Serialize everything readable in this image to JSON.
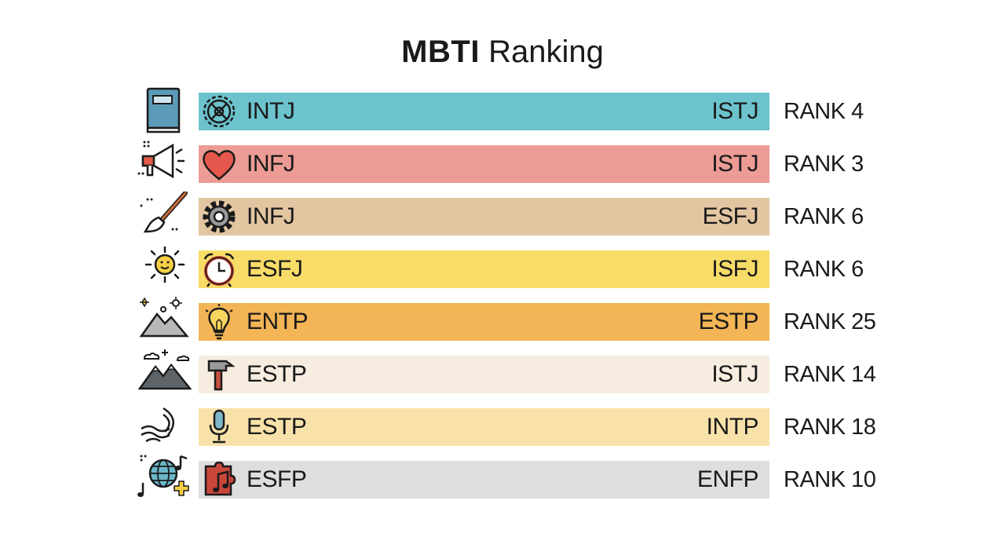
{
  "title": {
    "bold": "MBTI",
    "regular": "Ranking"
  },
  "rows": [
    {
      "left_icon": "book-icon",
      "bar_icon": "gear-wheel-icon",
      "type_left": "INTJ",
      "type_right": "ISTJ",
      "rank": "RANK 4",
      "color": "#6cc3cd"
    },
    {
      "left_icon": "megaphone-icon",
      "bar_icon": "heart-icon",
      "type_left": "INFJ",
      "type_right": "ISTJ",
      "rank": "RANK 3",
      "color": "#ec9c94"
    },
    {
      "left_icon": "paintbrush-icon",
      "bar_icon": "gear-icon",
      "type_left": "INFJ",
      "type_right": "ESFJ",
      "rank": "RANK 6",
      "color": "#e2c6a2"
    },
    {
      "left_icon": "sun-icon",
      "bar_icon": "alarm-clock-icon",
      "type_left": "ESFJ",
      "type_right": "ISFJ",
      "rank": "RANK 6",
      "color": "#f8dc68"
    },
    {
      "left_icon": "mountain-sparkle-icon",
      "bar_icon": "lightbulb-icon",
      "type_left": "ENTP",
      "type_right": "ESTP",
      "rank": "RANK 25",
      "color": "#f3b555"
    },
    {
      "left_icon": "mountains-icon",
      "bar_icon": "hammer-icon",
      "type_left": "ESTP",
      "type_right": "ISTJ",
      "rank": "RANK 14",
      "color": "#f6ede0"
    },
    {
      "left_icon": "sound-wave-icon",
      "bar_icon": "microphone-icon",
      "type_left": "ESTP",
      "type_right": "INTP",
      "rank": "RANK 18",
      "color": "#f9e2aa"
    },
    {
      "left_icon": "globe-music-icon",
      "bar_icon": "puzzle-music-icon",
      "type_left": "ESFP",
      "type_right": "ENFP",
      "rank": "RANK 10",
      "color": "#dedede"
    }
  ]
}
